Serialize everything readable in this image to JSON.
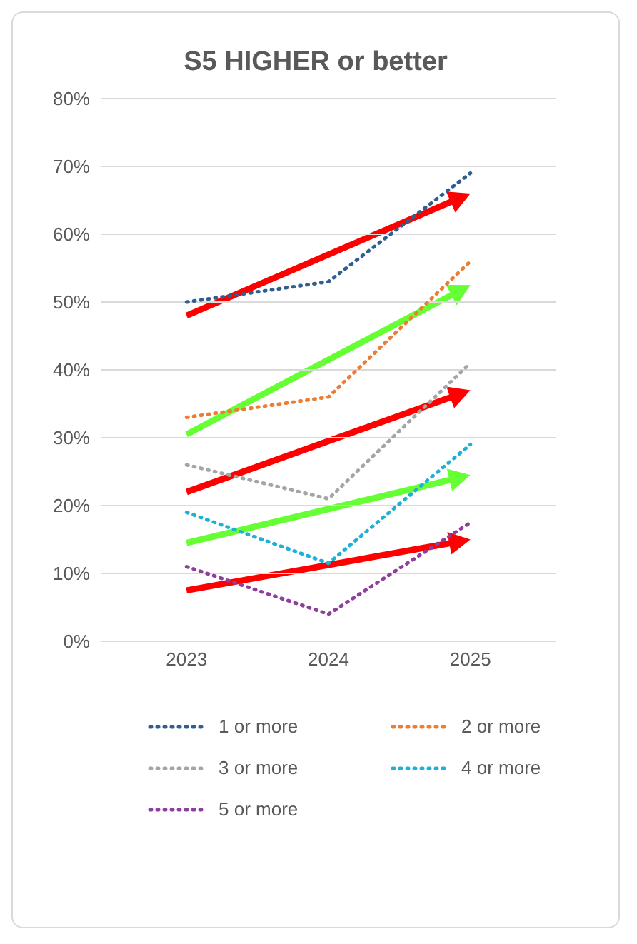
{
  "chart_data": {
    "type": "line",
    "title": "S5 HIGHER or better",
    "categories": [
      "2023",
      "2024",
      "2025"
    ],
    "series": [
      {
        "name": "1 or more",
        "color": "#2f5f8f",
        "values": [
          50,
          53,
          69
        ],
        "line_style": "dotted"
      },
      {
        "name": "2 or more",
        "color": "#ed7d31",
        "values": [
          33,
          36,
          56
        ],
        "line_style": "dotted"
      },
      {
        "name": "3 or more",
        "color": "#a5a5a5",
        "values": [
          26,
          21,
          41
        ],
        "line_style": "dotted"
      },
      {
        "name": "4 or more",
        "color": "#1fb0d6",
        "values": [
          19,
          11.5,
          29
        ],
        "line_style": "dotted"
      },
      {
        "name": "5 or more",
        "color": "#8e3f9e",
        "values": [
          11,
          4,
          17.5
        ],
        "line_style": "dotted"
      }
    ],
    "ylim": [
      0,
      80
    ],
    "yticks": [
      {
        "value": 0,
        "label": "0%"
      },
      {
        "value": 10,
        "label": "10%"
      },
      {
        "value": 20,
        "label": "20%"
      },
      {
        "value": 30,
        "label": "30%"
      },
      {
        "value": 40,
        "label": "40%"
      },
      {
        "value": 50,
        "label": "50%"
      },
      {
        "value": 60,
        "label": "60%"
      },
      {
        "value": 70,
        "label": "70%"
      },
      {
        "value": 80,
        "label": "80%"
      }
    ],
    "grid": "y",
    "legend": "bottom",
    "marker": "none"
  }
}
